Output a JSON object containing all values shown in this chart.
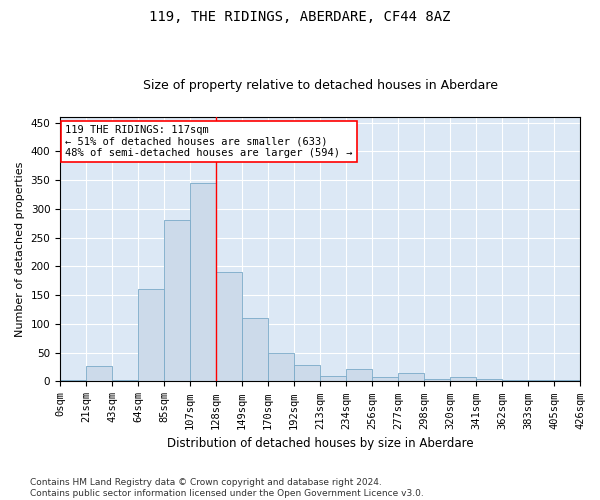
{
  "title": "119, THE RIDINGS, ABERDARE, CF44 8AZ",
  "subtitle": "Size of property relative to detached houses in Aberdare",
  "xlabel": "Distribution of detached houses by size in Aberdare",
  "ylabel": "Number of detached properties",
  "bar_color": "#ccdaea",
  "bar_edge_color": "#7aaac8",
  "background_color": "#dce8f5",
  "grid_color": "#ffffff",
  "bins": [
    "0sqm",
    "21sqm",
    "43sqm",
    "64sqm",
    "85sqm",
    "107sqm",
    "128sqm",
    "149sqm",
    "170sqm",
    "192sqm",
    "213sqm",
    "234sqm",
    "256sqm",
    "277sqm",
    "298sqm",
    "320sqm",
    "341sqm",
    "362sqm",
    "383sqm",
    "405sqm",
    "426sqm"
  ],
  "values": [
    2,
    27,
    3,
    160,
    280,
    345,
    190,
    110,
    50,
    28,
    10,
    22,
    8,
    15,
    5,
    8,
    5,
    2,
    2,
    3
  ],
  "ylim": [
    0,
    460
  ],
  "yticks": [
    0,
    50,
    100,
    150,
    200,
    250,
    300,
    350,
    400,
    450
  ],
  "annotation_text": "119 THE RIDINGS: 117sqm\n← 51% of detached houses are smaller (633)\n48% of semi-detached houses are larger (594) →",
  "footnote": "Contains HM Land Registry data © Crown copyright and database right 2024.\nContains public sector information licensed under the Open Government Licence v3.0.",
  "title_fontsize": 10,
  "subtitle_fontsize": 9,
  "xlabel_fontsize": 8.5,
  "ylabel_fontsize": 8,
  "tick_fontsize": 7.5,
  "annotation_fontsize": 7.5,
  "footnote_fontsize": 6.5,
  "red_line_x": 5.5
}
